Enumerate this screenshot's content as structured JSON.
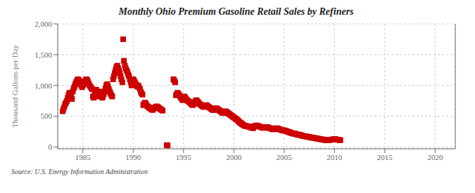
{
  "chart_data": {
    "type": "scatter",
    "title": "Monthly Ohio Premium Gasoline Retail Sales by Refiners",
    "ylabel": "Thousand Gallons per Day",
    "annotation": "Source: U.S. Energy Information Administration",
    "color": "#cc0000",
    "marker": "square",
    "grid": true,
    "xlim": [
      1982.5,
      2022
    ],
    "ylim": [
      -30,
      2000
    ],
    "xticks": [
      1985,
      1990,
      1995,
      2000,
      2005,
      2010,
      2015,
      2020
    ],
    "yticks": [
      0,
      500,
      {
        "value": 1000,
        "label": "1,000"
      },
      {
        "value": 1500,
        "label": "1,500"
      },
      {
        "value": 2000,
        "label": "2,000"
      }
    ],
    "x": [
      1983.0,
      1983.08,
      1983.17,
      1983.25,
      1983.33,
      1983.42,
      1983.5,
      1983.58,
      1983.67,
      1983.75,
      1983.83,
      1983.92,
      1984.0,
      1984.08,
      1984.17,
      1984.25,
      1984.33,
      1984.42,
      1984.5,
      1984.58,
      1984.67,
      1984.75,
      1984.83,
      1984.92,
      1985.0,
      1985.08,
      1985.17,
      1985.25,
      1985.33,
      1985.42,
      1985.5,
      1985.58,
      1985.67,
      1985.75,
      1985.83,
      1985.92,
      1986.0,
      1986.08,
      1986.17,
      1986.25,
      1986.33,
      1986.42,
      1986.5,
      1986.58,
      1986.67,
      1986.75,
      1986.83,
      1986.92,
      1987.0,
      1987.08,
      1987.17,
      1987.25,
      1987.33,
      1987.42,
      1987.5,
      1987.58,
      1987.67,
      1987.75,
      1987.83,
      1987.92,
      1988.0,
      1988.08,
      1988.17,
      1988.25,
      1988.33,
      1988.42,
      1988.5,
      1988.58,
      1988.67,
      1988.75,
      1988.83,
      1988.92,
      1989.0,
      1989.08,
      1989.17,
      1989.25,
      1989.33,
      1989.42,
      1989.5,
      1989.58,
      1989.67,
      1989.75,
      1989.83,
      1989.92,
      1990.0,
      1990.08,
      1990.17,
      1990.25,
      1990.33,
      1990.42,
      1990.5,
      1990.58,
      1990.67,
      1990.75,
      1990.83,
      1990.92,
      1991.0,
      1991.08,
      1991.17,
      1991.25,
      1991.33,
      1991.42,
      1991.5,
      1991.58,
      1991.67,
      1991.75,
      1991.83,
      1991.92,
      1992.0,
      1992.08,
      1992.17,
      1992.25,
      1992.33,
      1992.42,
      1992.5,
      1992.58,
      1992.67,
      1992.75,
      1992.83,
      1992.92,
      1993.33,
      1993.42,
      1994.0,
      1994.08,
      1994.17,
      1994.25,
      1994.33,
      1994.42,
      1994.5,
      1994.58,
      1994.67,
      1994.75,
      1994.83,
      1994.92,
      1995.0,
      1995.08,
      1995.17,
      1995.25,
      1995.33,
      1995.42,
      1995.5,
      1995.58,
      1995.67,
      1995.75,
      1995.83,
      1995.92,
      1996.0,
      1996.08,
      1996.17,
      1996.25,
      1996.33,
      1996.42,
      1996.5,
      1996.58,
      1996.67,
      1996.75,
      1996.83,
      1996.92,
      1997.0,
      1997.08,
      1997.17,
      1997.25,
      1997.33,
      1997.42,
      1997.5,
      1997.58,
      1997.67,
      1997.75,
      1997.83,
      1997.92,
      1998.0,
      1998.08,
      1998.17,
      1998.25,
      1998.33,
      1998.42,
      1998.5,
      1998.58,
      1998.67,
      1998.75,
      1998.83,
      1998.92,
      1999.0,
      1999.08,
      1999.17,
      1999.25,
      1999.33,
      1999.42,
      1999.5,
      1999.58,
      1999.67,
      1999.75,
      1999.83,
      1999.92,
      2000.0,
      2000.08,
      2000.17,
      2000.25,
      2000.33,
      2000.42,
      2000.5,
      2000.58,
      2000.67,
      2000.75,
      2000.83,
      2000.92,
      2001.0,
      2001.08,
      2001.17,
      2001.25,
      2001.33,
      2001.42,
      2001.5,
      2001.58,
      2001.67,
      2001.75,
      2001.83,
      2001.92,
      2002.0,
      2002.08,
      2002.17,
      2002.25,
      2002.33,
      2002.42,
      2002.5,
      2002.58,
      2002.67,
      2002.75,
      2002.83,
      2002.92,
      2003.0,
      2003.08,
      2003.17,
      2003.25,
      2003.33,
      2003.42,
      2003.5,
      2003.58,
      2003.67,
      2003.75,
      2003.83,
      2003.92,
      2004.0,
      2004.08,
      2004.17,
      2004.25,
      2004.33,
      2004.42,
      2004.5,
      2004.58,
      2004.67,
      2004.75,
      2004.83,
      2004.92,
      2005.0,
      2005.08,
      2005.17,
      2005.25,
      2005.33,
      2005.42,
      2005.5,
      2005.58,
      2005.67,
      2005.75,
      2005.83,
      2005.92,
      2006.0,
      2006.08,
      2006.17,
      2006.25,
      2006.33,
      2006.42,
      2006.5,
      2006.58,
      2006.67,
      2006.75,
      2006.83,
      2006.92,
      2007.0,
      2007.08,
      2007.17,
      2007.25,
      2007.33,
      2007.42,
      2007.5,
      2007.58,
      2007.67,
      2007.75,
      2007.83,
      2007.92,
      2008.0,
      2008.08,
      2008.17,
      2008.25,
      2008.33,
      2008.42,
      2008.5,
      2008.58,
      2008.67,
      2008.75,
      2008.83,
      2008.92,
      2009.0,
      2009.08,
      2009.17,
      2009.25,
      2009.33,
      2009.42,
      2009.5,
      2009.58,
      2009.67,
      2009.75,
      2009.83,
      2009.92,
      2010.0,
      2010.08,
      2010.17,
      2010.25,
      2010.33,
      2010.42,
      2010.5,
      2010.58
    ],
    "values": [
      580,
      620,
      660,
      700,
      720,
      750,
      800,
      850,
      880,
      850,
      820,
      780,
      900,
      950,
      980,
      1020,
      1050,
      1080,
      1100,
      1090,
      1070,
      1040,
      1000,
      970,
      1000,
      1020,
      1050,
      1080,
      1100,
      1090,
      1060,
      1030,
      1000,
      980,
      960,
      940,
      820,
      800,
      850,
      900,
      930,
      870,
      820,
      860,
      900,
      880,
      840,
      800,
      820,
      860,
      900,
      950,
      1000,
      1020,
      980,
      940,
      900,
      870,
      840,
      820,
      1100,
      1150,
      1200,
      1250,
      1300,
      1320,
      1280,
      1240,
      1200,
      1150,
      1100,
      1050,
      1750,
      1400,
      1320,
      1280,
      1250,
      1220,
      1180,
      1150,
      1100,
      1050,
      1000,
      1050,
      1100,
      1080,
      1050,
      1020,
      1000,
      980,
      1000,
      970,
      940,
      900,
      870,
      850,
      680,
      700,
      720,
      700,
      680,
      660,
      650,
      640,
      630,
      620,
      610,
      600,
      620,
      630,
      640,
      650,
      660,
      650,
      640,
      630,
      620,
      610,
      600,
      590,
      30,
      25,
      1100,
      1080,
      1050,
      840,
      860,
      880,
      860,
      840,
      820,
      800,
      780,
      760,
      800,
      820,
      800,
      780,
      760,
      750,
      740,
      730,
      720,
      700,
      690,
      680,
      700,
      720,
      740,
      760,
      750,
      730,
      720,
      700,
      690,
      680,
      670,
      660,
      650,
      660,
      670,
      680,
      670,
      660,
      650,
      640,
      630,
      620,
      610,
      600,
      600,
      610,
      620,
      630,
      620,
      610,
      600,
      590,
      580,
      570,
      560,
      550,
      560,
      570,
      580,
      570,
      560,
      550,
      540,
      530,
      520,
      510,
      500,
      490,
      480,
      470,
      460,
      450,
      440,
      430,
      410,
      400,
      390,
      380,
      370,
      360,
      350,
      345,
      340,
      340,
      335,
      330,
      330,
      325,
      320,
      315,
      310,
      305,
      330,
      340,
      345,
      350,
      345,
      340,
      335,
      330,
      325,
      320,
      315,
      310,
      310,
      315,
      320,
      325,
      320,
      315,
      310,
      305,
      300,
      295,
      290,
      285,
      290,
      295,
      300,
      305,
      300,
      295,
      290,
      285,
      280,
      275,
      270,
      265,
      270,
      265,
      260,
      255,
      250,
      245,
      240,
      235,
      230,
      225,
      220,
      215,
      220,
      215,
      210,
      205,
      200,
      200,
      195,
      195,
      190,
      185,
      180,
      175,
      175,
      175,
      170,
      168,
      165,
      163,
      160,
      158,
      155,
      152,
      150,
      148,
      145,
      143,
      140,
      138,
      135,
      132,
      130,
      128,
      125,
      122,
      120,
      118,
      115,
      113,
      112,
      110,
      110,
      112,
      113,
      115,
      118,
      120,
      122,
      125,
      128,
      125,
      122,
      120,
      118,
      115,
      112,
      110
    ]
  }
}
